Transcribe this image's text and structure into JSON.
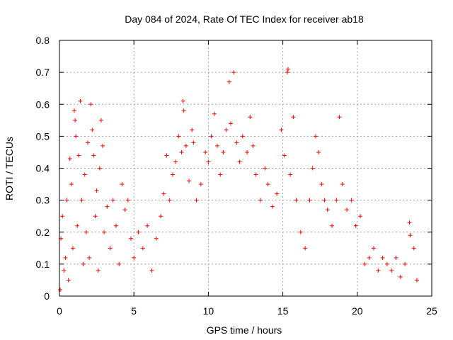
{
  "chart_data": {
    "type": "scatter",
    "title": "Day 084 of 2024, Rate Of TEC Index for receiver ab18",
    "xlabel": "GPS time / hours",
    "ylabel": "ROTI / TECUs",
    "xlim": [
      0,
      25
    ],
    "ylim": [
      0,
      0.8
    ],
    "xticks": [
      0,
      5,
      10,
      15,
      20,
      25
    ],
    "yticks": [
      0,
      0.1,
      0.2,
      0.3,
      0.4,
      0.5,
      0.6,
      0.7,
      0.8
    ],
    "ytick_labels": [
      "0",
      "0.1",
      "0.2",
      "0.3",
      "0.4",
      "0.5",
      "0.6",
      "0.7",
      "0.8"
    ],
    "grid": true,
    "marker": "+",
    "marker_color": "#ff0000",
    "series": [
      {
        "points": [
          [
            0.05,
            0.02
          ],
          [
            0.1,
            0.18
          ],
          [
            0.2,
            0.25
          ],
          [
            0.3,
            0.08
          ],
          [
            0.4,
            0.12
          ],
          [
            0.5,
            0.3
          ],
          [
            0.6,
            0.05
          ],
          [
            0.7,
            0.43
          ],
          [
            0.8,
            0.35
          ],
          [
            0.9,
            0.15
          ],
          [
            1.0,
            0.58
          ],
          [
            1.05,
            0.55
          ],
          [
            1.1,
            0.5
          ],
          [
            1.2,
            0.22
          ],
          [
            1.3,
            0.44
          ],
          [
            1.4,
            0.61
          ],
          [
            1.5,
            0.3
          ],
          [
            1.6,
            0.1
          ],
          [
            1.7,
            0.38
          ],
          [
            1.8,
            0.2
          ],
          [
            1.9,
            0.48
          ],
          [
            2.0,
            0.12
          ],
          [
            2.1,
            0.6
          ],
          [
            2.2,
            0.52
          ],
          [
            2.3,
            0.44
          ],
          [
            2.4,
            0.25
          ],
          [
            2.5,
            0.33
          ],
          [
            2.6,
            0.08
          ],
          [
            2.7,
            0.4
          ],
          [
            2.8,
            0.55
          ],
          [
            2.9,
            0.47
          ],
          [
            3.0,
            0.2
          ],
          [
            3.2,
            0.28
          ],
          [
            3.4,
            0.15
          ],
          [
            3.6,
            0.3
          ],
          [
            3.8,
            0.22
          ],
          [
            4.0,
            0.1
          ],
          [
            4.2,
            0.35
          ],
          [
            4.4,
            0.27
          ],
          [
            4.6,
            0.3
          ],
          [
            4.8,
            0.18
          ],
          [
            5.0,
            0.12
          ],
          [
            5.3,
            0.2
          ],
          [
            5.6,
            0.15
          ],
          [
            5.9,
            0.22
          ],
          [
            6.2,
            0.08
          ],
          [
            6.5,
            0.18
          ],
          [
            6.8,
            0.25
          ],
          [
            7.0,
            0.32
          ],
          [
            7.2,
            0.44
          ],
          [
            7.4,
            0.3
          ],
          [
            7.6,
            0.38
          ],
          [
            7.8,
            0.42
          ],
          [
            8.0,
            0.5
          ],
          [
            8.2,
            0.45
          ],
          [
            8.3,
            0.61
          ],
          [
            8.35,
            0.58
          ],
          [
            8.5,
            0.47
          ],
          [
            8.7,
            0.36
          ],
          [
            8.9,
            0.52
          ],
          [
            9.0,
            0.48
          ],
          [
            9.2,
            0.3
          ],
          [
            9.5,
            0.35
          ],
          [
            9.8,
            0.45
          ],
          [
            10.0,
            0.42
          ],
          [
            10.2,
            0.5
          ],
          [
            10.4,
            0.57
          ],
          [
            10.6,
            0.47
          ],
          [
            10.8,
            0.38
          ],
          [
            11.0,
            0.45
          ],
          [
            11.2,
            0.52
          ],
          [
            11.4,
            0.67
          ],
          [
            11.5,
            0.54
          ],
          [
            11.7,
            0.7
          ],
          [
            11.9,
            0.48
          ],
          [
            12.1,
            0.42
          ],
          [
            12.3,
            0.5
          ],
          [
            12.6,
            0.45
          ],
          [
            12.8,
            0.56
          ],
          [
            13.0,
            0.47
          ],
          [
            13.2,
            0.38
          ],
          [
            13.5,
            0.3
          ],
          [
            13.8,
            0.4
          ],
          [
            14.0,
            0.35
          ],
          [
            14.3,
            0.28
          ],
          [
            14.6,
            0.32
          ],
          [
            14.9,
            0.52
          ],
          [
            15.1,
            0.44
          ],
          [
            15.3,
            0.7
          ],
          [
            15.35,
            0.71
          ],
          [
            15.5,
            0.38
          ],
          [
            15.7,
            0.56
          ],
          [
            15.9,
            0.3
          ],
          [
            16.2,
            0.2
          ],
          [
            16.5,
            0.15
          ],
          [
            16.8,
            0.3
          ],
          [
            17.0,
            0.4
          ],
          [
            17.2,
            0.5
          ],
          [
            17.4,
            0.45
          ],
          [
            17.6,
            0.35
          ],
          [
            17.8,
            0.3
          ],
          [
            18.0,
            0.27
          ],
          [
            18.3,
            0.22
          ],
          [
            18.6,
            0.3
          ],
          [
            18.8,
            0.56
          ],
          [
            19.0,
            0.35
          ],
          [
            19.3,
            0.27
          ],
          [
            19.6,
            0.3
          ],
          [
            19.9,
            0.22
          ],
          [
            20.2,
            0.25
          ],
          [
            20.5,
            0.1
          ],
          [
            20.8,
            0.12
          ],
          [
            21.1,
            0.15
          ],
          [
            21.4,
            0.08
          ],
          [
            21.7,
            0.12
          ],
          [
            22.0,
            0.1
          ],
          [
            22.3,
            0.08
          ],
          [
            22.6,
            0.12
          ],
          [
            22.9,
            0.06
          ],
          [
            23.2,
            0.1
          ],
          [
            23.5,
            0.23
          ],
          [
            23.55,
            0.19
          ],
          [
            23.8,
            0.15
          ],
          [
            24.0,
            0.05
          ]
        ]
      }
    ]
  }
}
